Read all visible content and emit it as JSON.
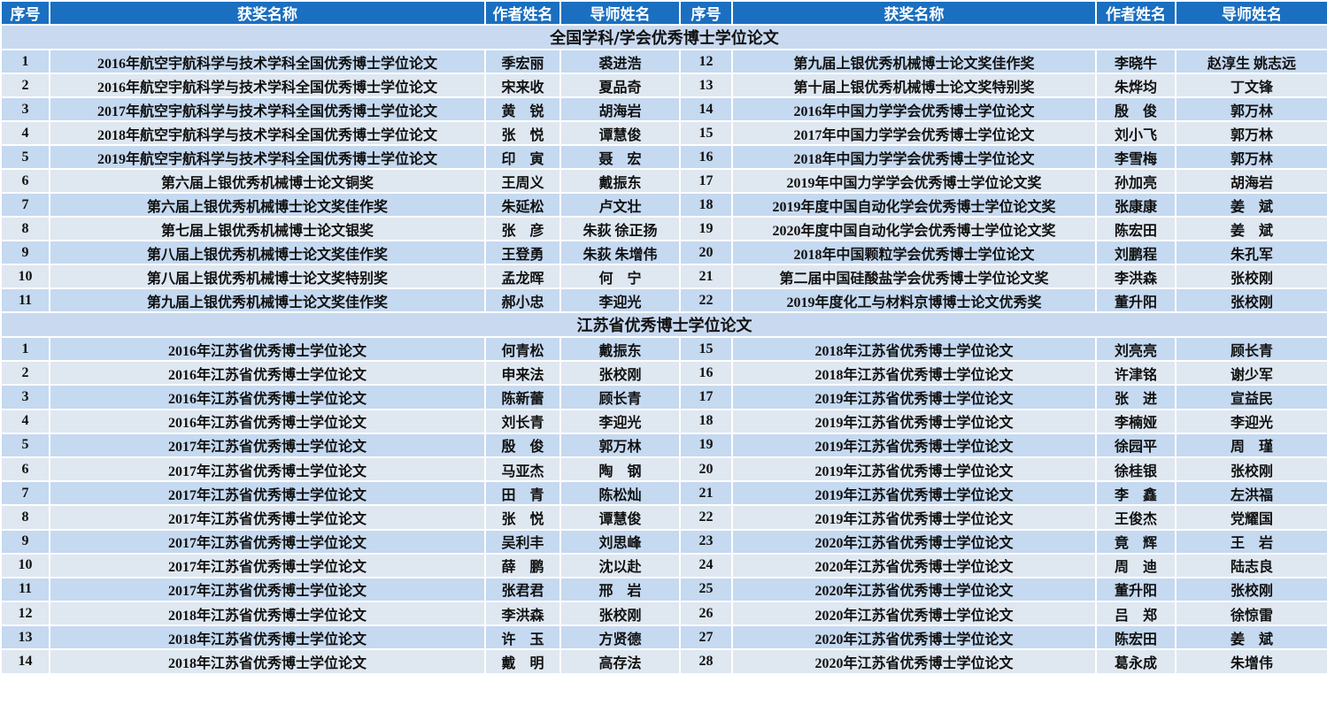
{
  "header": [
    "序号",
    "获奖名称",
    "作者姓名",
    "导师姓名",
    "序号",
    "获奖名称",
    "作者姓名",
    "导师姓名"
  ],
  "sections": [
    {
      "title": "全国学科/学会优秀博士学位论文",
      "rows": [
        [
          "1",
          "2016年航空宇航科学与技术学科全国优秀博士学位论文",
          "季宏丽",
          "裘进浩",
          "12",
          "第九届上银优秀机械博士论文奖佳作奖",
          "李晓牛",
          "赵淳生 姚志远"
        ],
        [
          "2",
          "2016年航空宇航科学与技术学科全国优秀博士学位论文",
          "宋来收",
          "夏品奇",
          "13",
          "第十届上银优秀机械博士论文奖特别奖",
          "朱烨均",
          "丁文锋"
        ],
        [
          "3",
          "2017年航空宇航科学与技术学科全国优秀博士学位论文",
          "黄　锐",
          "胡海岩",
          "14",
          "2016年中国力学学会优秀博士学位论文",
          "殷　俊",
          "郭万林"
        ],
        [
          "4",
          "2018年航空宇航科学与技术学科全国优秀博士学位论文",
          "张　悦",
          "谭慧俊",
          "15",
          "2017年中国力学学会优秀博士学位论文",
          "刘小飞",
          "郭万林"
        ],
        [
          "5",
          "2019年航空宇航科学与技术学科全国优秀博士学位论文",
          "印　寅",
          "聂　宏",
          "16",
          "2018年中国力学学会优秀博士学位论文",
          "李雪梅",
          "郭万林"
        ],
        [
          "6",
          "第六届上银优秀机械博士论文铜奖",
          "王周义",
          "戴振东",
          "17",
          "2019年中国力学学会优秀博士学位论文奖",
          "孙加亮",
          "胡海岩"
        ],
        [
          "7",
          "第六届上银优秀机械博士论文奖佳作奖",
          "朱延松",
          "卢文壮",
          "18",
          "2019年度中国自动化学会优秀博士学位论文奖",
          "张康康",
          "姜　斌"
        ],
        [
          "8",
          "第七届上银优秀机械博士论文银奖",
          "张　彦",
          "朱荻 徐正扬",
          "19",
          "2020年度中国自动化学会优秀博士学位论文奖",
          "陈宏田",
          "姜　斌"
        ],
        [
          "9",
          "第八届上银优秀机械博士论文奖佳作奖",
          "王登勇",
          "朱荻 朱增伟",
          "20",
          "2018年中国颗粒学会优秀博士学位论文",
          "刘鹏程",
          "朱孔军"
        ],
        [
          "10",
          "第八届上银优秀机械博士论文奖特别奖",
          "孟龙晖",
          "何　宁",
          "21",
          "第二届中国硅酸盐学会优秀博士学位论文奖",
          "李洪森",
          "张校刚"
        ],
        [
          "11",
          "第九届上银优秀机械博士论文奖佳作奖",
          "郝小忠",
          "李迎光",
          "22",
          "2019年度化工与材料京博博士论文优秀奖",
          "董升阳",
          "张校刚"
        ]
      ]
    },
    {
      "title": "江苏省优秀博士学位论文",
      "rows": [
        [
          "1",
          "2016年江苏省优秀博士学位论文",
          "何青松",
          "戴振东",
          "15",
          "2018年江苏省优秀博士学位论文",
          "刘亮亮",
          "顾长青"
        ],
        [
          "2",
          "2016年江苏省优秀博士学位论文",
          "申来法",
          "张校刚",
          "16",
          "2018年江苏省优秀博士学位论文",
          "许津铭",
          "谢少军"
        ],
        [
          "3",
          "2016年江苏省优秀博士学位论文",
          "陈新蕾",
          "顾长青",
          "17",
          "2019年江苏省优秀博士学位论文",
          "张　进",
          "宣益民"
        ],
        [
          "4",
          "2016年江苏省优秀博士学位论文",
          "刘长青",
          "李迎光",
          "18",
          "2019年江苏省优秀博士学位论文",
          "李楠娅",
          "李迎光"
        ],
        [
          "5",
          "2017年江苏省优秀博士学位论文",
          "殷　俊",
          "郭万林",
          "19",
          "2019年江苏省优秀博士学位论文",
          "徐园平",
          "周　瑾"
        ],
        [
          "6",
          "2017年江苏省优秀博士学位论文",
          "马亚杰",
          "陶　钢",
          "20",
          "2019年江苏省优秀博士学位论文",
          "徐桂银",
          "张校刚"
        ],
        [
          "7",
          "2017年江苏省优秀博士学位论文",
          "田　青",
          "陈松灿",
          "21",
          "2019年江苏省优秀博士学位论文",
          "李　鑫",
          "左洪福"
        ],
        [
          "8",
          "2017年江苏省优秀博士学位论文",
          "张　悦",
          "谭慧俊",
          "22",
          "2019年江苏省优秀博士学位论文",
          "王俊杰",
          "党耀国"
        ],
        [
          "9",
          "2017年江苏省优秀博士学位论文",
          "吴利丰",
          "刘思峰",
          "23",
          "2020年江苏省优秀博士学位论文",
          "竟　辉",
          "王　岩"
        ],
        [
          "10",
          "2017年江苏省优秀博士学位论文",
          "薛　鹏",
          "沈以赴",
          "24",
          "2020年江苏省优秀博士学位论文",
          "周　迪",
          "陆志良"
        ],
        [
          "11",
          "2017年江苏省优秀博士学位论文",
          "张君君",
          "邢　岩",
          "25",
          "2020年江苏省优秀博士学位论文",
          "董升阳",
          "张校刚"
        ],
        [
          "12",
          "2018年江苏省优秀博士学位论文",
          "李洪森",
          "张校刚",
          "26",
          "2020年江苏省优秀博士学位论文",
          "吕　郑",
          "徐惊雷"
        ],
        [
          "13",
          "2018年江苏省优秀博士学位论文",
          "许　玉",
          "方贤德",
          "27",
          "2020年江苏省优秀博士学位论文",
          "陈宏田",
          "姜　斌"
        ],
        [
          "14",
          "2018年江苏省优秀博士学位论文",
          "戴　明",
          "高存法",
          "28",
          "2020年江苏省优秀博士学位论文",
          "葛永成",
          "朱增伟"
        ]
      ]
    }
  ]
}
